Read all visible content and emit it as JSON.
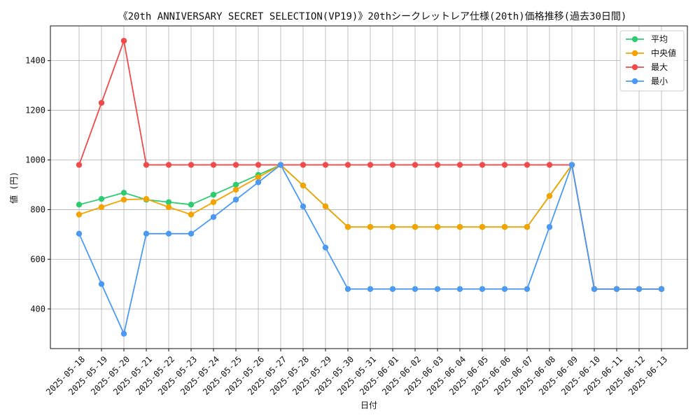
{
  "chart_data": {
    "type": "line",
    "title": "《20th ANNIVERSARY SECRET SELECTION(VP19)》20thシークレットレア仕様(20th)価格推移(過去30日間)",
    "xlabel": "日付",
    "ylabel": "値 (円)",
    "ylim": [
      240,
      1540
    ],
    "yticks": [
      400,
      600,
      800,
      1000,
      1200,
      1400
    ],
    "grid": true,
    "legend_position": "top-right",
    "categories": [
      "2025-05-18",
      "2025-05-19",
      "2025-05-20",
      "2025-05-21",
      "2025-05-22",
      "2025-05-23",
      "2025-05-24",
      "2025-05-25",
      "2025-05-26",
      "2025-05-27",
      "2025-05-28",
      "2025-05-29",
      "2025-05-30",
      "2025-05-31",
      "2025-06-01",
      "2025-06-02",
      "2025-06-03",
      "2025-06-04",
      "2025-06-05",
      "2025-06-06",
      "2025-06-07",
      "2025-06-08",
      "2025-06-09",
      "2025-06-10",
      "2025-06-11",
      "2025-06-12",
      "2025-06-13"
    ],
    "series": [
      {
        "name": "平均",
        "color": "#2ecc71",
        "values": [
          820,
          843,
          868,
          840,
          830,
          820,
          860,
          900,
          940,
          980,
          897,
          813,
          730,
          730,
          730,
          730,
          730,
          730,
          730,
          730,
          730,
          855,
          980,
          480,
          480,
          480,
          480
        ]
      },
      {
        "name": "中央値",
        "color": "#f5a300",
        "values": [
          780,
          810,
          840,
          843,
          810,
          780,
          830,
          880,
          930,
          980,
          897,
          813,
          730,
          730,
          730,
          730,
          730,
          730,
          730,
          730,
          730,
          855,
          980,
          480,
          480,
          480,
          480
        ]
      },
      {
        "name": "最大",
        "color": "#f04a4a",
        "values": [
          980,
          1230,
          1480,
          980,
          980,
          980,
          980,
          980,
          980,
          980,
          980,
          980,
          980,
          980,
          980,
          980,
          980,
          980,
          980,
          980,
          980,
          980,
          980,
          480,
          480,
          480,
          480
        ]
      },
      {
        "name": "最小",
        "color": "#4a9af5",
        "values": [
          703,
          500,
          300,
          703,
          703,
          703,
          770,
          840,
          910,
          980,
          813,
          647,
          480,
          480,
          480,
          480,
          480,
          480,
          480,
          480,
          480,
          730,
          980,
          480,
          480,
          480,
          480
        ]
      }
    ]
  }
}
